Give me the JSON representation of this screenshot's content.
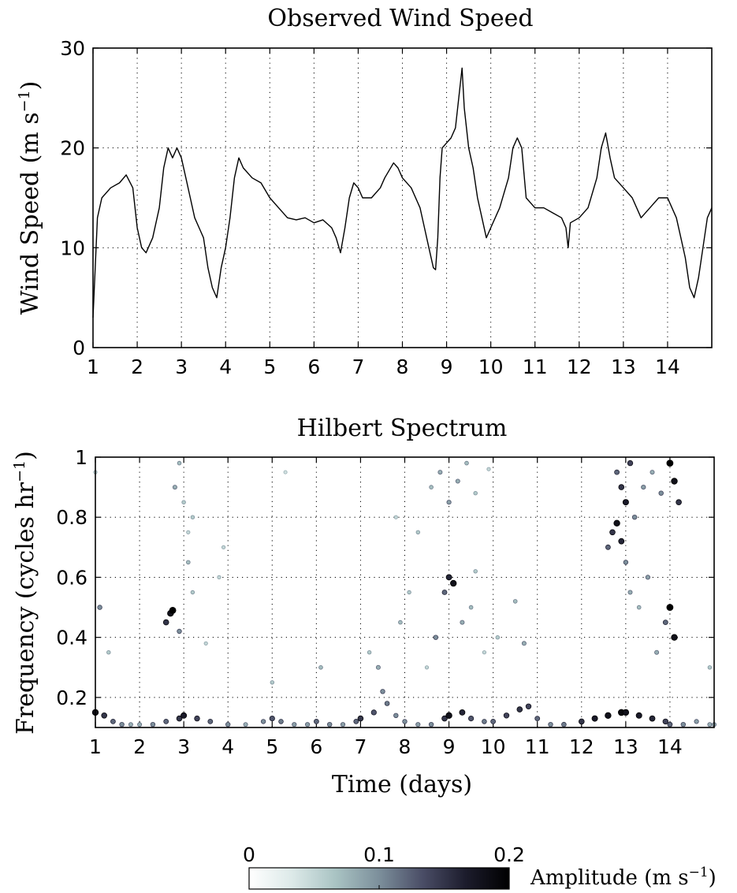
{
  "chart_data": [
    {
      "type": "line",
      "title": "Observed Wind Speed",
      "xlabel": "",
      "ylabel": "Wind Speed (m s",
      "ylabel_sup": "−1",
      "ylabel_close": ")",
      "xlim": [
        1,
        15
      ],
      "ylim": [
        0,
        30
      ],
      "xticks": [
        1,
        2,
        3,
        4,
        5,
        6,
        7,
        8,
        9,
        10,
        11,
        12,
        13,
        14
      ],
      "xtick_labels": [
        "1",
        "2",
        "3",
        "4",
        "5",
        "6",
        "7",
        "8",
        "9",
        "10",
        "11",
        "12",
        "13",
        "14"
      ],
      "yticks": [
        0,
        10,
        20,
        30
      ],
      "ytick_labels": [
        "0",
        "10",
        "20",
        "30"
      ],
      "grid": true,
      "x": [
        1.0,
        1.05,
        1.1,
        1.2,
        1.4,
        1.6,
        1.75,
        1.9,
        2.0,
        2.1,
        2.2,
        2.35,
        2.5,
        2.6,
        2.7,
        2.8,
        2.9,
        3.0,
        3.1,
        3.2,
        3.3,
        3.4,
        3.5,
        3.6,
        3.7,
        3.8,
        3.9,
        4.0,
        4.1,
        4.2,
        4.3,
        4.4,
        4.6,
        4.8,
        5.0,
        5.2,
        5.4,
        5.6,
        5.8,
        6.0,
        6.2,
        6.4,
        6.5,
        6.6,
        6.7,
        6.8,
        6.9,
        7.0,
        7.1,
        7.3,
        7.5,
        7.6,
        7.8,
        7.9,
        8.0,
        8.2,
        8.4,
        8.5,
        8.6,
        8.7,
        8.75,
        8.8,
        8.85,
        8.9,
        9.0,
        9.1,
        9.2,
        9.3,
        9.35,
        9.4,
        9.5,
        9.6,
        9.7,
        9.8,
        9.9,
        10.0,
        10.2,
        10.4,
        10.5,
        10.6,
        10.7,
        10.8,
        11.0,
        11.2,
        11.4,
        11.6,
        11.7,
        11.75,
        11.8,
        12.0,
        12.2,
        12.4,
        12.5,
        12.6,
        12.7,
        12.8,
        13.0,
        13.2,
        13.4,
        13.6,
        13.8,
        14.0,
        14.2,
        14.3,
        14.4,
        14.5,
        14.6,
        14.7,
        14.8,
        14.9,
        15.0
      ],
      "values": [
        3,
        8,
        13,
        15,
        16,
        16.5,
        17.3,
        16,
        12,
        10,
        9.5,
        11,
        14,
        18,
        20,
        19,
        20,
        19,
        17,
        15,
        13,
        12,
        11,
        8,
        6,
        5,
        8,
        10,
        13,
        17,
        19,
        18,
        17,
        16.5,
        15,
        14,
        13,
        12.8,
        13,
        12.5,
        12.8,
        12,
        11,
        9.5,
        12,
        15,
        16.5,
        16,
        15,
        15,
        16,
        17,
        18.5,
        18,
        17,
        16,
        14,
        12,
        10,
        8,
        7.8,
        11,
        17,
        20,
        20.5,
        21,
        22,
        26,
        28,
        24,
        20,
        18,
        15,
        13,
        11,
        12,
        14,
        17,
        20,
        21,
        20,
        15,
        14,
        14,
        13.5,
        13,
        12,
        10,
        12.5,
        13,
        14,
        17,
        20,
        21.5,
        19,
        17,
        16,
        15,
        13,
        14,
        15,
        15,
        13,
        11,
        9,
        6,
        5,
        7,
        10,
        13,
        14
      ]
    },
    {
      "type": "scatter",
      "title": "Hilbert Spectrum",
      "xlabel": "Time (days)",
      "ylabel": "Frequency (cycles hr",
      "ylabel_sup": "−1",
      "ylabel_close": ")",
      "xlim": [
        1,
        15
      ],
      "ylim": [
        0.1,
        1.0
      ],
      "xticks": [
        1,
        2,
        3,
        4,
        5,
        6,
        7,
        8,
        9,
        10,
        11,
        12,
        13,
        14
      ],
      "xtick_labels": [
        "1",
        "2",
        "3",
        "4",
        "5",
        "6",
        "7",
        "8",
        "9",
        "10",
        "11",
        "12",
        "13",
        "14"
      ],
      "yticks": [
        0.2,
        0.4,
        0.6,
        0.8,
        1.0
      ],
      "ytick_labels": [
        "0.2",
        "0.4",
        "0.6",
        "0.8",
        "1"
      ],
      "grid": true,
      "series": [
        {
          "role": "low-frequency ridge",
          "x": [
            1.0,
            1.2,
            1.4,
            1.6,
            1.8,
            2.0,
            2.3,
            2.6,
            2.9,
            3.0,
            3.3,
            3.6,
            4.0,
            4.4,
            4.8,
            5.0,
            5.2,
            5.5,
            5.8,
            6.0,
            6.3,
            6.6,
            6.9,
            7.0,
            7.3,
            7.6,
            7.8,
            8.0,
            8.3,
            8.6,
            8.9,
            9.0,
            9.3,
            9.5,
            9.8,
            10.0,
            10.3,
            10.6,
            10.8,
            11.0,
            11.3,
            11.6,
            12.0,
            12.3,
            12.6,
            12.9,
            13.0,
            13.3,
            13.6,
            13.9,
            14.0,
            14.3,
            14.6,
            14.9,
            15.0
          ],
          "y": [
            0.15,
            0.14,
            0.12,
            0.11,
            0.11,
            0.11,
            0.11,
            0.12,
            0.13,
            0.14,
            0.13,
            0.12,
            0.11,
            0.11,
            0.12,
            0.13,
            0.12,
            0.11,
            0.11,
            0.12,
            0.11,
            0.11,
            0.12,
            0.13,
            0.15,
            0.18,
            0.14,
            0.12,
            0.11,
            0.11,
            0.13,
            0.14,
            0.15,
            0.13,
            0.12,
            0.12,
            0.14,
            0.16,
            0.17,
            0.13,
            0.11,
            0.11,
            0.12,
            0.13,
            0.14,
            0.15,
            0.15,
            0.14,
            0.13,
            0.12,
            0.11,
            0.11,
            0.12,
            0.11,
            0.11
          ],
          "amplitude": [
            0.18,
            0.15,
            0.12,
            0.1,
            0.08,
            0.08,
            0.1,
            0.12,
            0.15,
            0.17,
            0.14,
            0.12,
            0.1,
            0.08,
            0.1,
            0.13,
            0.11,
            0.09,
            0.09,
            0.12,
            0.1,
            0.09,
            0.12,
            0.15,
            0.13,
            0.11,
            0.1,
            0.1,
            0.09,
            0.1,
            0.15,
            0.18,
            0.16,
            0.13,
            0.11,
            0.12,
            0.14,
            0.15,
            0.14,
            0.12,
            0.1,
            0.11,
            0.15,
            0.17,
            0.18,
            0.19,
            0.18,
            0.17,
            0.16,
            0.14,
            0.12,
            0.1,
            0.09,
            0.08,
            0.08
          ]
        },
        {
          "role": "mid-frequency scatter",
          "x": [
            1.1,
            1.3,
            2.6,
            2.7,
            2.75,
            2.9,
            3.1,
            3.2,
            3.5,
            3.8,
            5.0,
            6.1,
            7.2,
            7.4,
            7.5,
            7.9,
            8.1,
            8.5,
            8.7,
            8.9,
            9.0,
            9.1,
            9.3,
            9.5,
            9.6,
            9.8,
            10.1,
            10.5,
            10.7,
            12.6,
            12.7,
            12.8,
            12.9,
            13.0,
            13.1,
            13.3,
            13.5,
            13.7,
            13.9,
            14.0,
            14.1,
            14.9
          ],
          "y": [
            0.5,
            0.35,
            0.45,
            0.48,
            0.49,
            0.42,
            0.65,
            0.55,
            0.38,
            0.6,
            0.25,
            0.3,
            0.35,
            0.3,
            0.22,
            0.45,
            0.55,
            0.3,
            0.4,
            0.55,
            0.6,
            0.58,
            0.45,
            0.5,
            0.62,
            0.35,
            0.4,
            0.52,
            0.38,
            0.7,
            0.75,
            0.78,
            0.72,
            0.65,
            0.55,
            0.5,
            0.6,
            0.35,
            0.45,
            0.5,
            0.4,
            0.3
          ],
          "amplitude": [
            0.1,
            0.06,
            0.15,
            0.18,
            0.2,
            0.1,
            0.07,
            0.06,
            0.05,
            0.05,
            0.06,
            0.07,
            0.06,
            0.08,
            0.1,
            0.07,
            0.06,
            0.05,
            0.1,
            0.12,
            0.16,
            0.18,
            0.08,
            0.07,
            0.06,
            0.05,
            0.06,
            0.07,
            0.08,
            0.12,
            0.15,
            0.18,
            0.16,
            0.1,
            0.08,
            0.07,
            0.09,
            0.08,
            0.12,
            0.2,
            0.18,
            0.06
          ]
        },
        {
          "role": "high-frequency scatter",
          "x": [
            1.0,
            2.8,
            2.9,
            3.0,
            3.1,
            3.2,
            3.9,
            5.3,
            7.8,
            8.3,
            8.6,
            8.8,
            9.0,
            9.2,
            9.4,
            9.6,
            9.9,
            12.8,
            12.9,
            13.0,
            13.1,
            13.2,
            13.4,
            13.6,
            13.8,
            14.0,
            14.1,
            14.2
          ],
          "y": [
            0.95,
            0.9,
            0.98,
            0.85,
            0.75,
            0.8,
            0.7,
            0.95,
            0.8,
            0.75,
            0.9,
            0.95,
            0.85,
            0.92,
            0.98,
            0.88,
            0.96,
            0.95,
            0.9,
            0.85,
            0.98,
            0.8,
            0.9,
            0.95,
            0.88,
            0.98,
            0.92,
            0.85
          ],
          "amplitude": [
            0.05,
            0.08,
            0.07,
            0.06,
            0.05,
            0.06,
            0.05,
            0.04,
            0.05,
            0.06,
            0.07,
            0.08,
            0.09,
            0.08,
            0.07,
            0.06,
            0.05,
            0.12,
            0.15,
            0.17,
            0.14,
            0.1,
            0.09,
            0.08,
            0.1,
            0.2,
            0.18,
            0.15
          ]
        }
      ]
    }
  ],
  "colorbar": {
    "label": "Amplitude (m s",
    "label_sup": "−1",
    "label_close": ")",
    "range": [
      0,
      0.2
    ],
    "ticks": [
      0,
      0.1,
      0.2
    ],
    "tick_labels": [
      "0",
      "0.1",
      "0.2"
    ],
    "colors": [
      "#ffffff",
      "#dce9e8",
      "#a9c3c3",
      "#7c8f9b",
      "#4a4d66",
      "#1c1c2c",
      "#000000"
    ]
  }
}
